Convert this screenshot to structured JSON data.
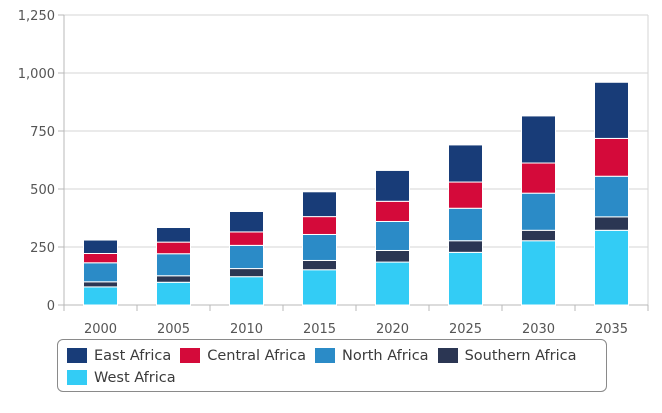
{
  "chart_data": {
    "type": "bar",
    "stacked": true,
    "categories": [
      "2000",
      "2005",
      "2010",
      "2015",
      "2020",
      "2025",
      "2030",
      "2035"
    ],
    "ylim": [
      0,
      1250
    ],
    "yticks": [
      0,
      250,
      500,
      750,
      1000,
      1250
    ],
    "ytick_labels": [
      "0",
      "250",
      "500",
      "750",
      "1,000",
      "1,250"
    ],
    "grid": true,
    "legend_position": "bottom",
    "series": [
      {
        "name": "West Africa",
        "color": "#33ccf5",
        "values": [
          78,
          98,
          122,
          152,
          185,
          227,
          277,
          322
        ]
      },
      {
        "name": "Southern Africa",
        "color": "#2b3653",
        "values": [
          22,
          28,
          35,
          40,
          50,
          50,
          45,
          58
        ]
      },
      {
        "name": "North Africa",
        "color": "#2b8bc7",
        "values": [
          82,
          95,
          100,
          112,
          125,
          140,
          160,
          175
        ]
      },
      {
        "name": "Central Africa",
        "color": "#d40a3a",
        "values": [
          40,
          50,
          58,
          77,
          87,
          113,
          130,
          163
        ]
      },
      {
        "name": "East Africa",
        "color": "#183c78",
        "values": [
          58,
          63,
          88,
          107,
          133,
          160,
          203,
          242
        ]
      }
    ],
    "legend_order": [
      "East Africa",
      "Central Africa",
      "North Africa",
      "Southern Africa",
      "West Africa"
    ]
  }
}
